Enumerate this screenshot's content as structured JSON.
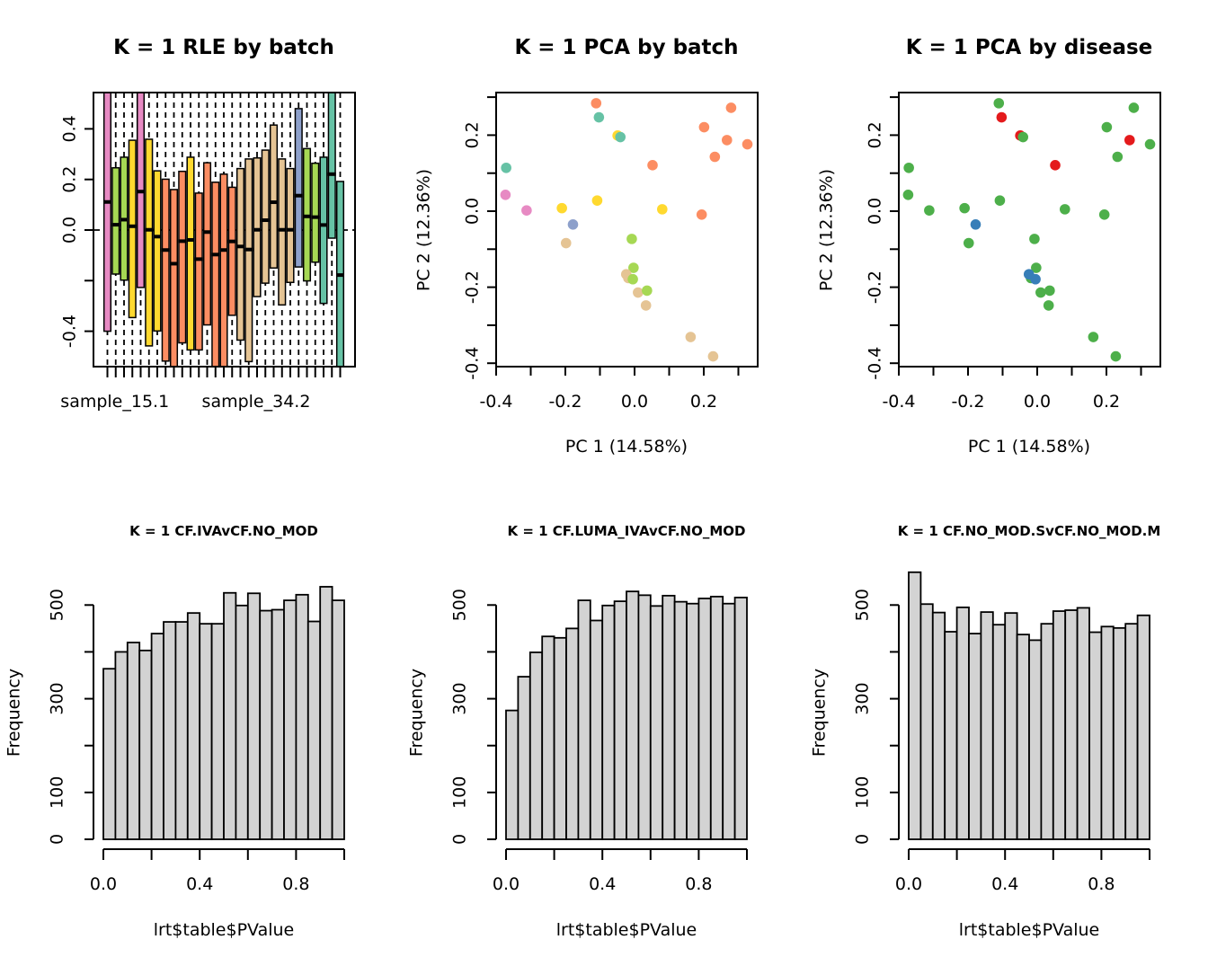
{
  "colors": {
    "batch": {
      "teal": "#66C2A5",
      "orange": "#FC8D62",
      "blue": "#8DA0CB",
      "pink": "#E78AC3",
      "green": "#A6D854",
      "yellow": "#FFD92F",
      "tan": "#E5C494"
    },
    "disease": {
      "red": "#E41A1C",
      "blue": "#377EB8",
      "green": "#4DAF4A"
    },
    "histogram_fill": "#D3D3D3"
  },
  "chart_data": [
    {
      "id": "rle",
      "type": "boxplot",
      "title": "K = 1 RLE by batch",
      "xlabel": "",
      "ylabel": "",
      "ylim": [
        -0.54,
        0.54
      ],
      "yticks": [
        -0.4,
        -0.2,
        0.0,
        0.2,
        0.4
      ],
      "ytick_labels": [
        "-0.4",
        "",
        "0.0",
        "0.2",
        "0.4"
      ],
      "x_tick_labels_shown": [
        "sample_15.1",
        "sample_34.2"
      ],
      "x_tick_label_positions": [
        1,
        18
      ],
      "reference_line": 0,
      "grid": false,
      "boxes": [
        {
          "color": "pink",
          "q1": -0.4,
          "median": 0.111,
          "q3": 0.6
        },
        {
          "color": "green",
          "q1": -0.174,
          "median": 0.021,
          "q3": 0.246
        },
        {
          "color": "green",
          "q1": -0.198,
          "median": 0.041,
          "q3": 0.288
        },
        {
          "color": "yellow",
          "q1": -0.346,
          "median": 0.015,
          "q3": 0.355
        },
        {
          "color": "pink",
          "q1": -0.227,
          "median": 0.152,
          "q3": 0.6
        },
        {
          "color": "yellow",
          "q1": -0.458,
          "median": 0.001,
          "q3": 0.359
        },
        {
          "color": "yellow",
          "q1": -0.399,
          "median": -0.026,
          "q3": 0.234
        },
        {
          "color": "orange",
          "q1": -0.518,
          "median": -0.079,
          "q3": 0.201
        },
        {
          "color": "orange",
          "q1": -0.6,
          "median": -0.133,
          "q3": 0.16
        },
        {
          "color": "orange",
          "q1": -0.446,
          "median": -0.044,
          "q3": 0.232
        },
        {
          "color": "yellow",
          "q1": -0.474,
          "median": -0.039,
          "q3": 0.288
        },
        {
          "color": "orange",
          "q1": -0.474,
          "median": -0.115,
          "q3": 0.146
        },
        {
          "color": "orange",
          "q1": -0.375,
          "median": -0.008,
          "q3": 0.266
        },
        {
          "color": "orange",
          "q1": -0.6,
          "median": -0.097,
          "q3": 0.189
        },
        {
          "color": "orange",
          "q1": -0.6,
          "median": -0.079,
          "q3": 0.221
        },
        {
          "color": "orange",
          "q1": -0.337,
          "median": -0.045,
          "q3": 0.169
        },
        {
          "color": "tan",
          "q1": -0.435,
          "median": -0.065,
          "q3": 0.243
        },
        {
          "color": "tan",
          "q1": -0.52,
          "median": -0.077,
          "q3": 0.281
        },
        {
          "color": "tan",
          "q1": -0.263,
          "median": 0.001,
          "q3": 0.285
        },
        {
          "color": "tan",
          "q1": -0.21,
          "median": 0.039,
          "q3": 0.316
        },
        {
          "color": "tan",
          "q1": -0.15,
          "median": 0.11,
          "q3": 0.415
        },
        {
          "color": "tan",
          "q1": -0.296,
          "median": 0.001,
          "q3": 0.281
        },
        {
          "color": "tan",
          "q1": -0.207,
          "median": 0.001,
          "q3": 0.243
        },
        {
          "color": "blue",
          "q1": -0.146,
          "median": 0.136,
          "q3": 0.48
        },
        {
          "color": "green",
          "q1": -0.201,
          "median": 0.054,
          "q3": 0.322
        },
        {
          "color": "green",
          "q1": -0.127,
          "median": 0.051,
          "q3": 0.264
        },
        {
          "color": "teal",
          "q1": -0.29,
          "median": 0.02,
          "q3": 0.288
        },
        {
          "color": "teal",
          "q1": -0.032,
          "median": 0.221,
          "q3": 0.6
        },
        {
          "color": "teal",
          "q1": -0.6,
          "median": -0.178,
          "q3": 0.192
        }
      ]
    },
    {
      "id": "pca-batch",
      "type": "scatter",
      "title": "K = 1 PCA by batch",
      "xlabel": "PC 1 (14.58%)",
      "ylabel": "PC 2 (12.36%)",
      "xlim": [
        -0.385,
        0.355
      ],
      "ylim": [
        -0.41,
        0.31
      ],
      "xticks": [
        -0.4,
        -0.3,
        -0.2,
        -0.1,
        0.0,
        0.1,
        0.2,
        0.3
      ],
      "xtick_labels": [
        "-0.4",
        "",
        "-0.2",
        "",
        "0.0",
        "",
        "0.2",
        ""
      ],
      "yticks": [
        -0.4,
        -0.3,
        -0.2,
        -0.1,
        0.0,
        0.1,
        0.2,
        0.3
      ],
      "ytick_labels": [
        "-0.4",
        "",
        "-0.2",
        "",
        "0.0",
        "",
        "0.2",
        ""
      ],
      "grid": false,
      "color_key": "batch",
      "points": [
        {
          "x": -0.111,
          "y": 0.284,
          "group": "orange"
        },
        {
          "x": -0.103,
          "y": 0.247,
          "group": "teal"
        },
        {
          "x": -0.049,
          "y": 0.199,
          "group": "yellow"
        },
        {
          "x": -0.041,
          "y": 0.195,
          "group": "teal"
        },
        {
          "x": -0.371,
          "y": 0.114,
          "group": "teal"
        },
        {
          "x": -0.373,
          "y": 0.043,
          "group": "pink"
        },
        {
          "x": -0.312,
          "y": 0.002,
          "group": "pink"
        },
        {
          "x": -0.21,
          "y": 0.008,
          "group": "yellow"
        },
        {
          "x": -0.108,
          "y": 0.028,
          "group": "yellow"
        },
        {
          "x": -0.178,
          "y": -0.035,
          "group": "blue"
        },
        {
          "x": -0.198,
          "y": -0.084,
          "group": "tan"
        },
        {
          "x": -0.008,
          "y": -0.073,
          "group": "green"
        },
        {
          "x": -0.003,
          "y": -0.149,
          "group": "green"
        },
        {
          "x": -0.024,
          "y": -0.166,
          "group": "tan"
        },
        {
          "x": -0.018,
          "y": -0.176,
          "group": "tan"
        },
        {
          "x": -0.005,
          "y": -0.179,
          "group": "green"
        },
        {
          "x": 0.01,
          "y": -0.214,
          "group": "tan"
        },
        {
          "x": 0.036,
          "y": -0.209,
          "group": "green"
        },
        {
          "x": 0.033,
          "y": -0.248,
          "group": "tan"
        },
        {
          "x": 0.08,
          "y": 0.005,
          "group": "yellow"
        },
        {
          "x": 0.052,
          "y": 0.121,
          "group": "orange"
        },
        {
          "x": 0.194,
          "y": -0.009,
          "group": "orange"
        },
        {
          "x": 0.201,
          "y": 0.221,
          "group": "orange"
        },
        {
          "x": 0.232,
          "y": 0.143,
          "group": "orange"
        },
        {
          "x": 0.267,
          "y": 0.187,
          "group": "orange"
        },
        {
          "x": 0.279,
          "y": 0.272,
          "group": "orange"
        },
        {
          "x": 0.326,
          "y": 0.176,
          "group": "orange"
        },
        {
          "x": 0.162,
          "y": -0.331,
          "group": "tan"
        },
        {
          "x": 0.227,
          "y": -0.382,
          "group": "tan"
        }
      ]
    },
    {
      "id": "pca-disease",
      "type": "scatter",
      "title": "K = 1 PCA by disease",
      "xlabel": "PC 1 (14.58%)",
      "ylabel": "PC 2 (12.36%)",
      "xlim": [
        -0.385,
        0.355
      ],
      "ylim": [
        -0.41,
        0.31
      ],
      "xticks": [
        -0.4,
        -0.3,
        -0.2,
        -0.1,
        0.0,
        0.1,
        0.2,
        0.3
      ],
      "xtick_labels": [
        "-0.4",
        "",
        "-0.2",
        "",
        "0.0",
        "",
        "0.2",
        ""
      ],
      "yticks": [
        -0.4,
        -0.3,
        -0.2,
        -0.1,
        0.0,
        0.1,
        0.2,
        0.3
      ],
      "ytick_labels": [
        "-0.4",
        "",
        "-0.2",
        "",
        "0.0",
        "",
        "0.2",
        ""
      ],
      "grid": false,
      "color_key": "disease",
      "points": [
        {
          "x": -0.111,
          "y": 0.284,
          "group": "green"
        },
        {
          "x": -0.103,
          "y": 0.247,
          "group": "red"
        },
        {
          "x": -0.049,
          "y": 0.199,
          "group": "red"
        },
        {
          "x": -0.041,
          "y": 0.195,
          "group": "green"
        },
        {
          "x": -0.371,
          "y": 0.114,
          "group": "green"
        },
        {
          "x": -0.373,
          "y": 0.043,
          "group": "green"
        },
        {
          "x": -0.312,
          "y": 0.002,
          "group": "green"
        },
        {
          "x": -0.21,
          "y": 0.008,
          "group": "green"
        },
        {
          "x": -0.108,
          "y": 0.028,
          "group": "green"
        },
        {
          "x": -0.178,
          "y": -0.035,
          "group": "blue"
        },
        {
          "x": -0.198,
          "y": -0.084,
          "group": "green"
        },
        {
          "x": -0.008,
          "y": -0.073,
          "group": "green"
        },
        {
          "x": -0.003,
          "y": -0.149,
          "group": "green"
        },
        {
          "x": -0.018,
          "y": -0.176,
          "group": "green"
        },
        {
          "x": -0.024,
          "y": -0.166,
          "group": "blue"
        },
        {
          "x": -0.005,
          "y": -0.179,
          "group": "blue"
        },
        {
          "x": 0.01,
          "y": -0.214,
          "group": "green"
        },
        {
          "x": 0.036,
          "y": -0.209,
          "group": "green"
        },
        {
          "x": 0.033,
          "y": -0.248,
          "group": "green"
        },
        {
          "x": 0.08,
          "y": 0.005,
          "group": "green"
        },
        {
          "x": 0.052,
          "y": 0.121,
          "group": "red"
        },
        {
          "x": 0.194,
          "y": -0.009,
          "group": "green"
        },
        {
          "x": 0.201,
          "y": 0.221,
          "group": "green"
        },
        {
          "x": 0.232,
          "y": 0.143,
          "group": "green"
        },
        {
          "x": 0.267,
          "y": 0.187,
          "group": "red"
        },
        {
          "x": 0.279,
          "y": 0.272,
          "group": "green"
        },
        {
          "x": 0.326,
          "y": 0.176,
          "group": "green"
        },
        {
          "x": 0.162,
          "y": -0.331,
          "group": "green"
        },
        {
          "x": 0.227,
          "y": -0.382,
          "group": "green"
        }
      ]
    },
    {
      "id": "hist-1",
      "type": "bar",
      "title": "K = 1 CF.IVAvCF.NO_MOD",
      "xlabel": "lrt$table$PValue",
      "ylabel": "Frequency",
      "xlim": [
        0,
        1
      ],
      "bin_width": 0.05,
      "xticks": [
        0.0,
        0.2,
        0.4,
        0.6,
        0.8,
        1.0
      ],
      "xtick_labels": [
        "0.0",
        "",
        "0.4",
        "",
        "0.8",
        ""
      ],
      "yticks": [
        0,
        100,
        200,
        300,
        400,
        500
      ],
      "ytick_labels": [
        "0",
        "100",
        "",
        "300",
        "",
        "500"
      ],
      "grid": false,
      "values": [
        364,
        400,
        420,
        403,
        439,
        464,
        464,
        483,
        460,
        460,
        526,
        499,
        525,
        488,
        490,
        510,
        522,
        465,
        539,
        510
      ]
    },
    {
      "id": "hist-2",
      "type": "bar",
      "title": "K = 1 CF.LUMA_IVAvCF.NO_MOD",
      "xlabel": "lrt$table$PValue",
      "ylabel": "Frequency",
      "xlim": [
        0,
        1
      ],
      "bin_width": 0.05,
      "xticks": [
        0.0,
        0.2,
        0.4,
        0.6,
        0.8,
        1.0
      ],
      "xtick_labels": [
        "0.0",
        "",
        "0.4",
        "",
        "0.8",
        ""
      ],
      "yticks": [
        0,
        100,
        200,
        300,
        400,
        500
      ],
      "ytick_labels": [
        "0",
        "100",
        "",
        "300",
        "",
        "500"
      ],
      "grid": false,
      "values": [
        275,
        347,
        399,
        433,
        430,
        450,
        510,
        467,
        499,
        508,
        529,
        521,
        498,
        520,
        507,
        503,
        514,
        518,
        503,
        516
      ]
    },
    {
      "id": "hist-3",
      "type": "bar",
      "title": "K = 1 CF.NO_MOD.SvCF.NO_MOD.M",
      "xlabel": "lrt$table$PValue",
      "ylabel": "Frequency",
      "xlim": [
        0,
        1
      ],
      "bin_width": 0.05,
      "xticks": [
        0.0,
        0.2,
        0.4,
        0.6,
        0.8,
        1.0
      ],
      "xtick_labels": [
        "0.0",
        "",
        "0.4",
        "",
        "0.8",
        ""
      ],
      "yticks": [
        0,
        100,
        200,
        300,
        400,
        500
      ],
      "ytick_labels": [
        "0",
        "100",
        "",
        "300",
        "",
        "500"
      ],
      "grid": false,
      "values": [
        570,
        502,
        484,
        443,
        495,
        439,
        485,
        458,
        483,
        437,
        425,
        460,
        487,
        489,
        494,
        442,
        454,
        451,
        460,
        478
      ]
    }
  ]
}
